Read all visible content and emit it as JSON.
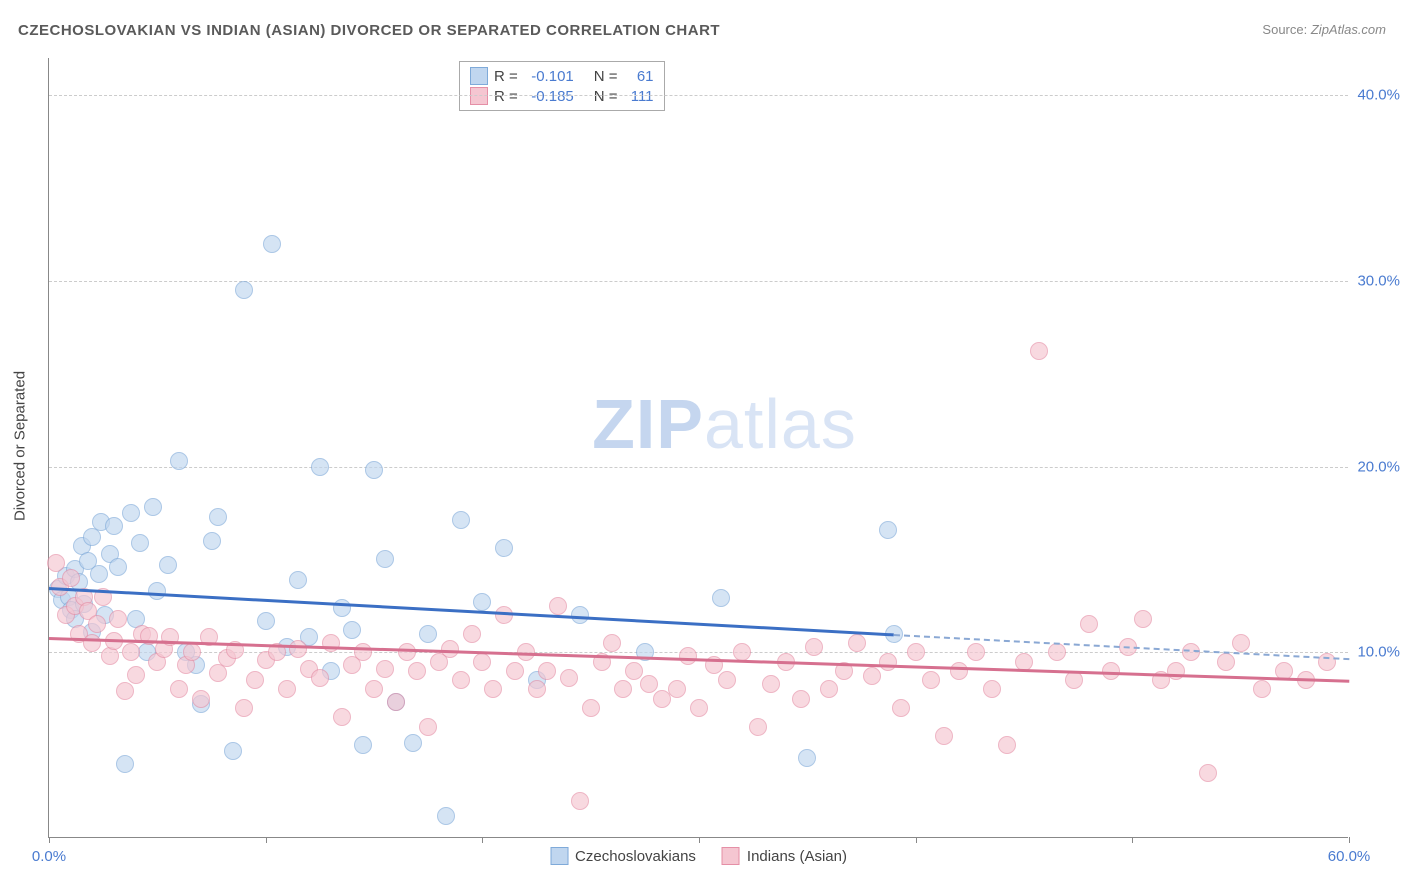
{
  "title": "CZECHOSLOVAKIAN VS INDIAN (ASIAN) DIVORCED OR SEPARATED CORRELATION CHART",
  "source_label": "Source:",
  "source_value": "ZipAtlas.com",
  "ylabel": "Divorced or Separated",
  "watermark_bold": "ZIP",
  "watermark_rest": "atlas",
  "chart": {
    "type": "scatter-correlation",
    "background_color": "#ffffff",
    "grid_color": "#cccccc",
    "axis_color": "#888888",
    "tick_label_color": "#4a7bd0",
    "font_size_title": 15,
    "font_size_labels": 15,
    "xlim": [
      0,
      60
    ],
    "ylim": [
      0,
      42
    ],
    "xticks": [
      0,
      10,
      20,
      30,
      40,
      50,
      60
    ],
    "xtick_labels": [
      "0.0%",
      "",
      "",
      "",
      "",
      "",
      "60.0%"
    ],
    "yticks": [
      10,
      20,
      30,
      40
    ],
    "ytick_labels": [
      "10.0%",
      "20.0%",
      "30.0%",
      "40.0%"
    ],
    "marker_radius": 9,
    "marker_stroke_width": 1.3,
    "series": [
      {
        "name": "Czechoslovakians",
        "fill": "#c0d6ef",
        "stroke": "#7faad9",
        "fill_opacity": 0.65,
        "r_value": "-0.101",
        "n_value": "61",
        "trend": {
          "x1": 0,
          "y1": 13.5,
          "x2": 39,
          "y2": 11.0,
          "color": "#3b6fc4",
          "width": 2.5
        },
        "trend_ext": {
          "x1": 39,
          "y1": 11.0,
          "x2": 60,
          "y2": 9.7,
          "color": "#8aa8d4"
        },
        "points": [
          [
            0.4,
            13.4
          ],
          [
            0.6,
            12.8
          ],
          [
            0.8,
            14.1
          ],
          [
            0.9,
            13.0
          ],
          [
            1.0,
            12.3
          ],
          [
            1.2,
            14.5
          ],
          [
            1.2,
            11.8
          ],
          [
            1.4,
            13.8
          ],
          [
            1.5,
            15.7
          ],
          [
            1.6,
            12.6
          ],
          [
            1.8,
            14.9
          ],
          [
            2.0,
            11.1
          ],
          [
            2.0,
            16.2
          ],
          [
            2.3,
            14.2
          ],
          [
            2.4,
            17.0
          ],
          [
            2.6,
            12.0
          ],
          [
            2.8,
            15.3
          ],
          [
            3.0,
            16.8
          ],
          [
            3.2,
            14.6
          ],
          [
            3.5,
            4.0
          ],
          [
            3.8,
            17.5
          ],
          [
            4.0,
            11.8
          ],
          [
            4.2,
            15.9
          ],
          [
            4.5,
            10.0
          ],
          [
            4.8,
            17.8
          ],
          [
            5.0,
            13.3
          ],
          [
            5.5,
            14.7
          ],
          [
            6.0,
            20.3
          ],
          [
            6.3,
            10.0
          ],
          [
            6.8,
            9.3
          ],
          [
            7.0,
            7.2
          ],
          [
            7.5,
            16.0
          ],
          [
            7.8,
            17.3
          ],
          [
            8.5,
            4.7
          ],
          [
            9.0,
            29.5
          ],
          [
            10.0,
            11.7
          ],
          [
            10.3,
            32.0
          ],
          [
            11.0,
            10.3
          ],
          [
            11.5,
            13.9
          ],
          [
            12.0,
            10.8
          ],
          [
            12.5,
            20.0
          ],
          [
            13.0,
            9.0
          ],
          [
            13.5,
            12.4
          ],
          [
            14.0,
            11.2
          ],
          [
            14.5,
            5.0
          ],
          [
            15.0,
            19.8
          ],
          [
            15.5,
            15.0
          ],
          [
            16.0,
            7.3
          ],
          [
            16.8,
            5.1
          ],
          [
            17.5,
            11.0
          ],
          [
            18.3,
            1.2
          ],
          [
            19.0,
            17.1
          ],
          [
            20.0,
            12.7
          ],
          [
            21.0,
            15.6
          ],
          [
            22.5,
            8.5
          ],
          [
            24.5,
            12.0
          ],
          [
            27.5,
            10.0
          ],
          [
            31.0,
            12.9
          ],
          [
            35.0,
            4.3
          ],
          [
            38.7,
            16.6
          ],
          [
            39.0,
            11.0
          ]
        ]
      },
      {
        "name": "Indians (Asian)",
        "fill": "#f5c6d1",
        "stroke": "#e58fa6",
        "fill_opacity": 0.65,
        "r_value": "-0.185",
        "n_value": "111",
        "trend": {
          "x1": 0,
          "y1": 10.8,
          "x2": 60,
          "y2": 8.5,
          "color": "#d6708f",
          "width": 2.5
        },
        "points": [
          [
            0.3,
            14.8
          ],
          [
            0.5,
            13.5
          ],
          [
            0.8,
            12.0
          ],
          [
            1.0,
            14.0
          ],
          [
            1.2,
            12.5
          ],
          [
            1.4,
            11.0
          ],
          [
            1.6,
            13.0
          ],
          [
            1.8,
            12.2
          ],
          [
            2.0,
            10.5
          ],
          [
            2.2,
            11.5
          ],
          [
            2.5,
            13.0
          ],
          [
            2.8,
            9.8
          ],
          [
            3.0,
            10.6
          ],
          [
            3.2,
            11.8
          ],
          [
            3.5,
            7.9
          ],
          [
            3.8,
            10.0
          ],
          [
            4.0,
            8.8
          ],
          [
            4.3,
            11.0
          ],
          [
            4.6,
            10.9
          ],
          [
            5.0,
            9.5
          ],
          [
            5.3,
            10.2
          ],
          [
            5.6,
            10.8
          ],
          [
            6.0,
            8.0
          ],
          [
            6.3,
            9.3
          ],
          [
            6.6,
            10.0
          ],
          [
            7.0,
            7.5
          ],
          [
            7.4,
            10.8
          ],
          [
            7.8,
            8.9
          ],
          [
            8.2,
            9.7
          ],
          [
            8.6,
            10.1
          ],
          [
            9.0,
            7.0
          ],
          [
            9.5,
            8.5
          ],
          [
            10.0,
            9.6
          ],
          [
            10.5,
            10.0
          ],
          [
            11.0,
            8.0
          ],
          [
            11.5,
            10.2
          ],
          [
            12.0,
            9.1
          ],
          [
            12.5,
            8.6
          ],
          [
            13.0,
            10.5
          ],
          [
            13.5,
            6.5
          ],
          [
            14.0,
            9.3
          ],
          [
            14.5,
            10.0
          ],
          [
            15.0,
            8.0
          ],
          [
            15.5,
            9.1
          ],
          [
            16.0,
            7.3
          ],
          [
            16.5,
            10.0
          ],
          [
            17.0,
            9.0
          ],
          [
            17.5,
            6.0
          ],
          [
            18.0,
            9.5
          ],
          [
            18.5,
            10.2
          ],
          [
            19.0,
            8.5
          ],
          [
            19.5,
            11.0
          ],
          [
            20.0,
            9.5
          ],
          [
            20.5,
            8.0
          ],
          [
            21.0,
            12.0
          ],
          [
            21.5,
            9.0
          ],
          [
            22.0,
            10.0
          ],
          [
            22.5,
            8.0
          ],
          [
            23.0,
            9.0
          ],
          [
            23.5,
            12.5
          ],
          [
            24.0,
            8.6
          ],
          [
            24.5,
            2.0
          ],
          [
            25.0,
            7.0
          ],
          [
            25.5,
            9.5
          ],
          [
            26.0,
            10.5
          ],
          [
            26.5,
            8.0
          ],
          [
            27.0,
            9.0
          ],
          [
            27.7,
            8.3
          ],
          [
            28.3,
            7.5
          ],
          [
            29.0,
            8.0
          ],
          [
            29.5,
            9.8
          ],
          [
            30.0,
            7.0
          ],
          [
            30.7,
            9.3
          ],
          [
            31.3,
            8.5
          ],
          [
            32.0,
            10.0
          ],
          [
            32.7,
            6.0
          ],
          [
            33.3,
            8.3
          ],
          [
            34.0,
            9.5
          ],
          [
            34.7,
            7.5
          ],
          [
            35.3,
            10.3
          ],
          [
            36.0,
            8.0
          ],
          [
            36.7,
            9.0
          ],
          [
            37.3,
            10.5
          ],
          [
            38.0,
            8.7
          ],
          [
            38.7,
            9.5
          ],
          [
            39.3,
            7.0
          ],
          [
            40.0,
            10.0
          ],
          [
            40.7,
            8.5
          ],
          [
            41.3,
            5.5
          ],
          [
            42.0,
            9.0
          ],
          [
            42.8,
            10.0
          ],
          [
            43.5,
            8.0
          ],
          [
            44.2,
            5.0
          ],
          [
            45.0,
            9.5
          ],
          [
            45.7,
            26.2
          ],
          [
            46.5,
            10.0
          ],
          [
            47.3,
            8.5
          ],
          [
            48.0,
            11.5
          ],
          [
            49.0,
            9.0
          ],
          [
            49.8,
            10.3
          ],
          [
            50.5,
            11.8
          ],
          [
            51.3,
            8.5
          ],
          [
            52.0,
            9.0
          ],
          [
            52.7,
            10.0
          ],
          [
            53.5,
            3.5
          ],
          [
            54.3,
            9.5
          ],
          [
            55.0,
            10.5
          ],
          [
            56.0,
            8.0
          ],
          [
            57.0,
            9.0
          ],
          [
            58.0,
            8.5
          ],
          [
            59.0,
            9.5
          ]
        ]
      }
    ],
    "stats_legend": {
      "r_label": "R =",
      "n_label": "N ="
    },
    "bottom_legend": [
      "Czechoslovakians",
      "Indians (Asian)"
    ]
  }
}
